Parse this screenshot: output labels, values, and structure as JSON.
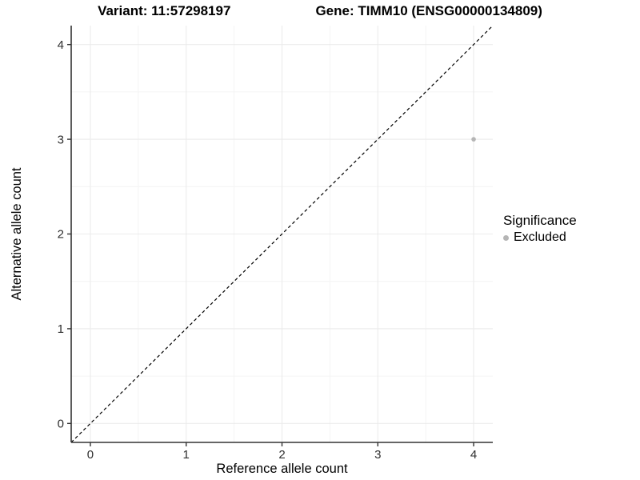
{
  "title": {
    "variant": "Variant: 11:57298197",
    "gene": "Gene: TIMM10 (ENSG00000134809)"
  },
  "legend": {
    "title": "Significance",
    "items": [
      {
        "label": "Excluded",
        "color": "#b5b5b5"
      }
    ]
  },
  "chart_data": {
    "type": "scatter",
    "title": "Variant: 11:57298197   Gene: TIMM10 (ENSG00000134809)",
    "xlabel": "Reference allele count",
    "ylabel": "Alternative allele count",
    "xlim": [
      -0.2,
      4.2
    ],
    "ylim": [
      -0.2,
      4.2
    ],
    "x_ticks": [
      0,
      1,
      2,
      3,
      4
    ],
    "y_ticks": [
      0,
      1,
      2,
      3,
      4
    ],
    "x_minor_ticks": [
      0.5,
      1.5,
      2.5,
      3.5
    ],
    "y_minor_ticks": [
      0.5,
      1.5,
      2.5,
      3.5
    ],
    "grid": "major+minor",
    "legend_position": "right",
    "legend_title": "Significance",
    "series": [
      {
        "name": "Excluded",
        "color": "#b5b5b5",
        "points": [
          {
            "x": 4,
            "y": 3
          }
        ]
      }
    ],
    "reference_line": {
      "slope": 1,
      "intercept": 0,
      "style": "dashed",
      "color": "#000000"
    },
    "colors": {
      "background": "#ffffff",
      "grid_major": "#ebebeb",
      "grid_minor": "#f4f4f4",
      "axis_line": "#333333",
      "tick_text": "#2e2e2e",
      "title_text": "#000000"
    }
  }
}
